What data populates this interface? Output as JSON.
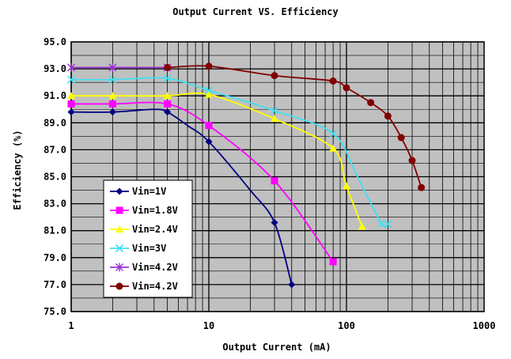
{
  "chart_data": {
    "type": "line",
    "title": "Output Current VS. Efficiency",
    "xlabel": "Output Current (mA)",
    "ylabel": "Efficiency (%)",
    "xscale": "log",
    "xlim": [
      1,
      1000
    ],
    "ylim": [
      75,
      95
    ],
    "x_ticks": [
      1,
      10,
      100,
      1000
    ],
    "x_tick_labels": [
      "1",
      "10",
      "100",
      "1000"
    ],
    "y_ticks": [
      75,
      77,
      79,
      81,
      83,
      85,
      87,
      89,
      91,
      93,
      95
    ],
    "y_tick_labels": [
      "75.0",
      "77.0",
      "79.0",
      "81.0",
      "83.0",
      "85.0",
      "87.0",
      "89.0",
      "91.0",
      "93.0",
      "95.0"
    ],
    "grid": true,
    "plot_background": "#c0c0c0",
    "legend_position": "bottom-left",
    "series": [
      {
        "name": "Vin=1V",
        "color": "#000080",
        "marker": "diamond",
        "points": [
          [
            1,
            89.8
          ],
          [
            2,
            89.8
          ],
          [
            4,
            90.0
          ],
          [
            5,
            89.8
          ],
          [
            7,
            88.8
          ],
          [
            10,
            87.6
          ],
          [
            20,
            84.0
          ],
          [
            30,
            81.6
          ],
          [
            40,
            77.0
          ]
        ]
      },
      {
        "name": "Vin=1.8V",
        "color": "#ff00ff",
        "marker": "square",
        "points": [
          [
            1,
            90.4
          ],
          [
            2,
            90.4
          ],
          [
            5,
            90.4
          ],
          [
            10,
            88.8
          ],
          [
            30,
            84.7
          ],
          [
            80,
            78.7
          ]
        ]
      },
      {
        "name": "Vin=2.4V",
        "color": "#ffff00",
        "marker": "triangle",
        "points": [
          [
            1,
            91.0
          ],
          [
            2,
            91.0
          ],
          [
            5,
            91.0
          ],
          [
            10,
            91.1
          ],
          [
            30,
            89.3
          ],
          [
            80,
            87.1
          ],
          [
            100,
            84.3
          ],
          [
            130,
            81.3
          ]
        ]
      },
      {
        "name": "Vin=3V",
        "color": "#40e0f0",
        "marker": "x",
        "points": [
          [
            1,
            92.2
          ],
          [
            2,
            92.2
          ],
          [
            5,
            92.3
          ],
          [
            10,
            91.4
          ],
          [
            30,
            89.9
          ],
          [
            80,
            88.2
          ],
          [
            120,
            85.0
          ],
          [
            180,
            81.5
          ],
          [
            200,
            81.5
          ]
        ]
      },
      {
        "name": "Vin=4.2V",
        "color": "#9933cc",
        "marker": "star",
        "points": [
          [
            1,
            93.1
          ],
          [
            2,
            93.1
          ],
          [
            5,
            93.1
          ]
        ]
      },
      {
        "name": "Vin=4.2V",
        "color": "#800000",
        "marker": "circle",
        "points": [
          [
            5,
            93.1
          ],
          [
            10,
            93.2
          ],
          [
            30,
            92.5
          ],
          [
            80,
            92.1
          ],
          [
            100,
            91.6
          ],
          [
            150,
            90.5
          ],
          [
            200,
            89.5
          ],
          [
            250,
            87.9
          ],
          [
            300,
            86.2
          ],
          [
            350,
            84.2
          ]
        ]
      }
    ]
  }
}
